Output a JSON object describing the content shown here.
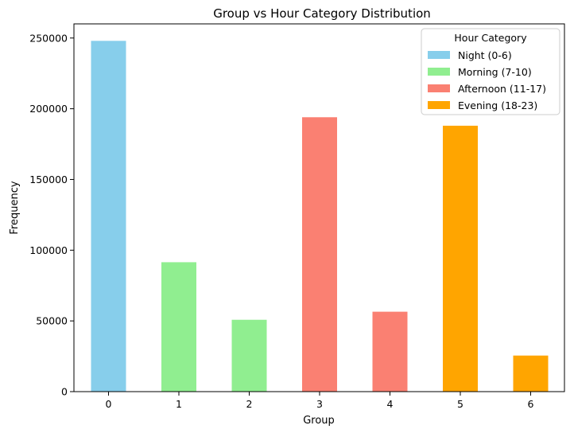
{
  "chart_data": {
    "type": "bar",
    "title": "Group vs Hour Category Distribution",
    "xlabel": "Group",
    "ylabel": "Frequency",
    "ylim": [
      0,
      260000
    ],
    "y_ticks": [
      0,
      50000,
      100000,
      150000,
      200000,
      250000
    ],
    "categories": [
      "0",
      "1",
      "2",
      "3",
      "4",
      "5",
      "6"
    ],
    "legend": {
      "title": "Hour Category",
      "placement": "top-right"
    },
    "series": [
      {
        "name": "Night (0-6)",
        "color": "#87ceeb",
        "values": [
          248000,
          null,
          null,
          null,
          null,
          null,
          null
        ]
      },
      {
        "name": "Morning (7-10)",
        "color": "#90ee90",
        "values": [
          null,
          91500,
          50800,
          null,
          null,
          null,
          null
        ]
      },
      {
        "name": "Afternoon (11-17)",
        "color": "#fa8072",
        "values": [
          null,
          null,
          null,
          194000,
          56500,
          null,
          null
        ]
      },
      {
        "name": "Evening (18-23)",
        "color": "#ffa500",
        "values": [
          null,
          null,
          null,
          null,
          null,
          188000,
          25500
        ]
      }
    ]
  }
}
